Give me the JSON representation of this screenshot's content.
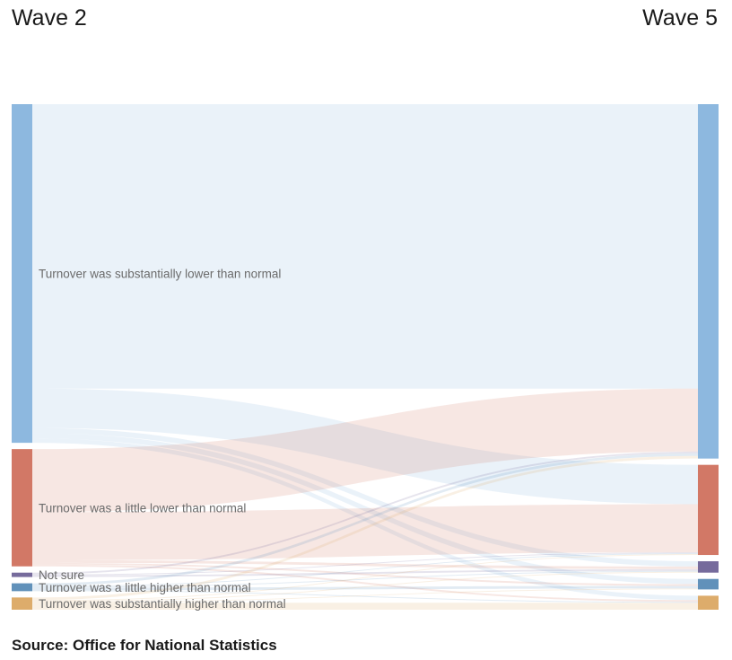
{
  "header": {
    "left_title": "Wave 2",
    "right_title": "Wave 5"
  },
  "source": "Source: Office for National Statistics",
  "chart_data": {
    "type": "sankey",
    "left_axis": "Wave 2",
    "right_axis": "Wave 5",
    "categories": [
      {
        "id": "sub_lower",
        "label": "Turnover was substantially lower than normal",
        "color": "#8db8df"
      },
      {
        "id": "little_lower",
        "label": "Turnover was a little lower than normal",
        "color": "#d27866"
      },
      {
        "id": "not_sure",
        "label": "Not sure",
        "color": "#766b9c"
      },
      {
        "id": "little_higher",
        "label": "Turnover was a little higher than normal",
        "color": "#6191ba"
      },
      {
        "id": "sub_higher",
        "label": "Turnover was substantially higher than normal",
        "color": "#ddac6b"
      }
    ],
    "flows": [
      {
        "from": "sub_lower",
        "to": "sub_lower",
        "value": 325
      },
      {
        "from": "sub_lower",
        "to": "little_lower",
        "value": 45
      },
      {
        "from": "sub_lower",
        "to": "not_sure",
        "value": 6
      },
      {
        "from": "sub_lower",
        "to": "little_higher",
        "value": 6
      },
      {
        "from": "sub_lower",
        "to": "sub_higher",
        "value": 5
      },
      {
        "from": "little_lower",
        "to": "sub_lower",
        "value": 72
      },
      {
        "from": "little_lower",
        "to": "little_lower",
        "value": 55
      },
      {
        "from": "little_lower",
        "to": "not_sure",
        "value": 3
      },
      {
        "from": "little_lower",
        "to": "little_higher",
        "value": 2
      },
      {
        "from": "little_lower",
        "to": "sub_higher",
        "value": 2
      },
      {
        "from": "not_sure",
        "to": "sub_lower",
        "value": 2
      },
      {
        "from": "not_sure",
        "to": "little_lower",
        "value": 1
      },
      {
        "from": "not_sure",
        "to": "not_sure",
        "value": 2
      },
      {
        "from": "little_higher",
        "to": "sub_lower",
        "value": 3
      },
      {
        "from": "little_higher",
        "to": "little_lower",
        "value": 1
      },
      {
        "from": "little_higher",
        "to": "not_sure",
        "value": 1
      },
      {
        "from": "little_higher",
        "to": "little_higher",
        "value": 3
      },
      {
        "from": "little_higher",
        "to": "sub_higher",
        "value": 1
      },
      {
        "from": "sub_higher",
        "to": "sub_lower",
        "value": 3
      },
      {
        "from": "sub_higher",
        "to": "little_lower",
        "value": 1
      },
      {
        "from": "sub_higher",
        "to": "not_sure",
        "value": 1
      },
      {
        "from": "sub_higher",
        "to": "little_higher",
        "value": 1
      },
      {
        "from": "sub_higher",
        "to": "sub_higher",
        "value": 8
      }
    ]
  }
}
